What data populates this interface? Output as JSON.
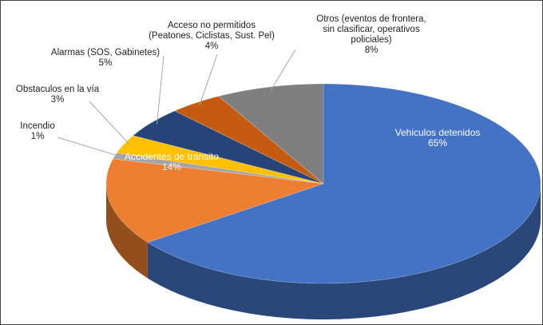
{
  "chart_data": {
    "type": "pie3d",
    "categories": [
      "Vehiculos detenidos",
      "Accidentes de transito",
      "Incendio",
      "Obstaculos en la vía",
      "Alarmas (SOS, Gabinetes)",
      "Acceso no permitidos\n(Peatones, Ciclistas, Sust. Pel)",
      "Otros (eventos de frontera,\nsin clasificar, operativos\npoliciales)"
    ],
    "values": [
      65,
      14,
      1,
      3,
      5,
      4,
      8
    ],
    "value_labels": [
      "65%",
      "14%",
      "1%",
      "3%",
      "5%",
      "4%",
      "8%"
    ],
    "colors": [
      "#4472c4",
      "#ed7d31",
      "#a5a5a5",
      "#ffc000",
      "#264478",
      "#c55a11",
      "#7f7f7f"
    ]
  }
}
